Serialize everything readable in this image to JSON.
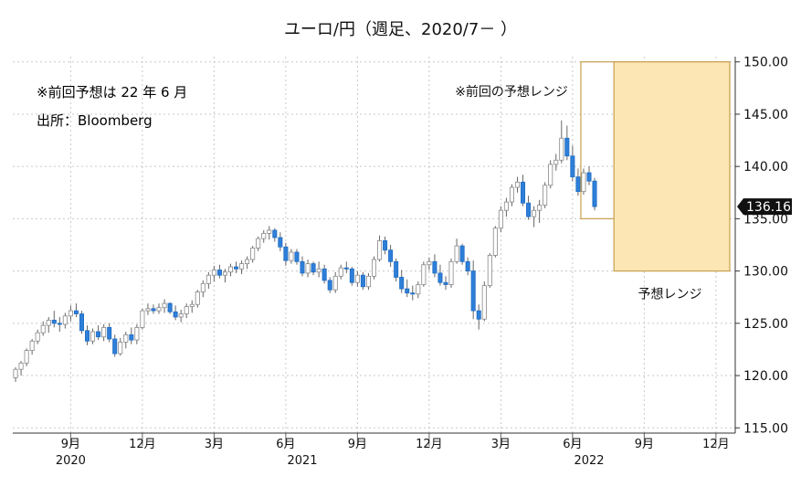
{
  "chart_data": {
    "type": "candlestick",
    "title": "ユーロ/円（週足、2020/7－ ）",
    "annotations": {
      "previous_forecast": "※前回予想は 22 年 6 月",
      "source": "出所：Bloomberg",
      "previous_range_label": "※前回の予想レンジ",
      "forecast_range_label": "予想レンジ"
    },
    "last_price_label": "136.16",
    "y_axis": {
      "ylim": [
        114.5,
        150.5
      ],
      "ticks": [
        115.0,
        120.0,
        125.0,
        130.0,
        135.0,
        140.0,
        145.0,
        150.0
      ],
      "tick_labels": [
        "115.00",
        "120.00",
        "125.00",
        "130.00",
        "135.00",
        "140.00",
        "145.00",
        "150.00"
      ],
      "side": "right"
    },
    "x_axis": {
      "months": [
        {
          "label": "9月",
          "week": 10
        },
        {
          "label": "12月",
          "week": 23
        },
        {
          "label": "3月",
          "week": 36
        },
        {
          "label": "6月",
          "week": 49
        },
        {
          "label": "9月",
          "week": 62
        },
        {
          "label": "12月",
          "week": 75
        },
        {
          "label": "3月",
          "week": 88
        },
        {
          "label": "6月",
          "week": 101
        },
        {
          "label": "9月",
          "week": 114
        },
        {
          "label": "12月",
          "week": 127
        }
      ],
      "years": [
        {
          "label": "2020",
          "week": 10
        },
        {
          "label": "2021",
          "week": 52
        },
        {
          "label": "2022",
          "week": 104
        }
      ]
    },
    "previous_forecast_range": {
      "week_start": 103,
      "week_end": 130,
      "low": 135.0,
      "high": 150.0
    },
    "forecast_range": {
      "week_start": 109,
      "week_end": 130,
      "low": 130.0,
      "high": 150.0
    },
    "colors": {
      "up": "#ffffff",
      "down": "#2e7fd8",
      "range_fill": "#fce6b4",
      "range_border": "#c8a050",
      "grid": "#c8c8c8"
    },
    "ohlc": [
      [
        119.8,
        120.8,
        119.4,
        120.6
      ],
      [
        120.6,
        121.4,
        120.0,
        121.2
      ],
      [
        121.2,
        122.6,
        120.9,
        122.4
      ],
      [
        122.4,
        123.5,
        122.0,
        123.3
      ],
      [
        123.3,
        124.4,
        123.0,
        124.1
      ],
      [
        124.1,
        125.2,
        123.8,
        124.8
      ],
      [
        124.8,
        125.6,
        124.1,
        125.3
      ],
      [
        125.3,
        126.2,
        124.6,
        125.0
      ],
      [
        125.0,
        125.6,
        124.2,
        124.9
      ],
      [
        124.9,
        126.0,
        124.5,
        125.7
      ],
      [
        125.7,
        126.7,
        125.2,
        126.2
      ],
      [
        126.2,
        126.9,
        125.6,
        125.9
      ],
      [
        125.9,
        126.2,
        124.0,
        124.3
      ],
      [
        124.3,
        124.8,
        122.9,
        123.3
      ],
      [
        123.3,
        124.5,
        123.0,
        124.2
      ],
      [
        124.2,
        124.8,
        123.4,
        123.7
      ],
      [
        123.7,
        124.9,
        123.3,
        124.6
      ],
      [
        124.6,
        125.0,
        123.2,
        123.5
      ],
      [
        123.5,
        123.9,
        121.8,
        122.1
      ],
      [
        122.1,
        123.6,
        121.9,
        123.2
      ],
      [
        123.2,
        124.2,
        122.6,
        123.9
      ],
      [
        123.9,
        124.6,
        123.0,
        123.4
      ],
      [
        123.4,
        124.9,
        123.0,
        124.6
      ],
      [
        124.6,
        126.4,
        124.4,
        126.2
      ],
      [
        126.2,
        126.9,
        125.8,
        126.4
      ],
      [
        126.4,
        126.8,
        125.9,
        126.2
      ],
      [
        126.2,
        126.9,
        125.9,
        126.5
      ],
      [
        126.5,
        127.3,
        126.0,
        126.9
      ],
      [
        126.9,
        127.0,
        125.9,
        126.1
      ],
      [
        126.1,
        126.7,
        125.3,
        125.6
      ],
      [
        125.6,
        126.3,
        125.1,
        125.9
      ],
      [
        125.9,
        126.9,
        125.5,
        126.6
      ],
      [
        126.6,
        127.2,
        126.0,
        126.8
      ],
      [
        126.8,
        128.2,
        126.5,
        128.0
      ],
      [
        128.0,
        129.1,
        127.5,
        128.8
      ],
      [
        128.8,
        129.9,
        128.3,
        129.6
      ],
      [
        129.6,
        130.5,
        129.0,
        130.1
      ],
      [
        130.1,
        130.6,
        129.3,
        129.6
      ],
      [
        129.6,
        130.2,
        128.9,
        129.9
      ],
      [
        129.9,
        130.7,
        129.5,
        130.4
      ],
      [
        130.4,
        130.9,
        129.8,
        130.2
      ],
      [
        130.2,
        131.0,
        129.7,
        130.7
      ],
      [
        130.7,
        131.4,
        130.2,
        131.1
      ],
      [
        131.1,
        132.4,
        130.8,
        132.2
      ],
      [
        132.2,
        133.3,
        131.9,
        133.1
      ],
      [
        133.1,
        133.9,
        132.7,
        133.6
      ],
      [
        133.6,
        134.3,
        133.0,
        133.9
      ],
      [
        133.9,
        134.1,
        132.8,
        133.2
      ],
      [
        133.2,
        133.7,
        131.9,
        132.3
      ],
      [
        132.3,
        132.7,
        130.5,
        131.0
      ],
      [
        131.0,
        132.1,
        130.7,
        131.8
      ],
      [
        131.8,
        132.1,
        130.6,
        130.9
      ],
      [
        130.9,
        131.4,
        129.5,
        129.8
      ],
      [
        129.8,
        131.1,
        129.4,
        130.7
      ],
      [
        130.7,
        130.9,
        129.6,
        129.9
      ],
      [
        129.9,
        130.9,
        129.4,
        130.2
      ],
      [
        130.2,
        130.6,
        128.8,
        129.1
      ],
      [
        129.1,
        129.4,
        127.9,
        128.2
      ],
      [
        128.2,
        129.9,
        127.9,
        129.5
      ],
      [
        129.5,
        130.6,
        129.2,
        130.3
      ],
      [
        130.3,
        130.9,
        129.8,
        130.2
      ],
      [
        130.2,
        130.4,
        128.6,
        128.9
      ],
      [
        128.9,
        130.0,
        128.5,
        129.6
      ],
      [
        129.6,
        129.9,
        128.2,
        128.5
      ],
      [
        128.5,
        129.8,
        128.2,
        129.5
      ],
      [
        129.5,
        131.4,
        129.2,
        131.1
      ],
      [
        131.1,
        133.4,
        130.9,
        132.9
      ],
      [
        132.9,
        133.3,
        131.6,
        132.0
      ],
      [
        132.0,
        132.5,
        130.4,
        130.9
      ],
      [
        130.9,
        131.2,
        129.0,
        129.4
      ],
      [
        129.4,
        130.1,
        127.9,
        128.3
      ],
      [
        128.3,
        129.2,
        127.5,
        127.9
      ],
      [
        127.9,
        128.6,
        127.2,
        127.8
      ],
      [
        127.8,
        129.0,
        127.4,
        128.7
      ],
      [
        128.7,
        130.9,
        128.5,
        130.6
      ],
      [
        130.6,
        131.3,
        130.1,
        130.9
      ],
      [
        130.9,
        131.6,
        129.4,
        129.8
      ],
      [
        129.8,
        130.6,
        128.6,
        128.9
      ],
      [
        128.9,
        129.5,
        128.2,
        128.7
      ],
      [
        128.7,
        131.2,
        128.4,
        130.9
      ],
      [
        130.9,
        133.1,
        130.7,
        132.4
      ],
      [
        132.4,
        132.6,
        130.6,
        130.9
      ],
      [
        130.9,
        131.3,
        129.6,
        130.0
      ],
      [
        130.0,
        131.0,
        125.4,
        126.2
      ],
      [
        126.2,
        126.8,
        124.4,
        125.4
      ],
      [
        125.4,
        129.0,
        125.2,
        128.6
      ],
      [
        128.6,
        131.7,
        128.4,
        131.5
      ],
      [
        131.5,
        134.3,
        131.3,
        134.1
      ],
      [
        134.1,
        136.2,
        133.7,
        135.8
      ],
      [
        135.8,
        137.0,
        135.2,
        136.6
      ],
      [
        136.6,
        138.3,
        136.2,
        138.0
      ],
      [
        138.0,
        139.0,
        137.5,
        138.5
      ],
      [
        138.5,
        139.2,
        136.2,
        136.5
      ],
      [
        136.5,
        137.2,
        134.9,
        135.2
      ],
      [
        135.2,
        136.2,
        134.2,
        135.8
      ],
      [
        135.8,
        136.8,
        134.6,
        136.3
      ],
      [
        136.3,
        138.5,
        136.0,
        138.2
      ],
      [
        138.2,
        140.6,
        137.9,
        140.2
      ],
      [
        140.2,
        141.2,
        139.6,
        140.6
      ],
      [
        140.6,
        144.4,
        140.3,
        142.7
      ],
      [
        142.7,
        143.9,
        140.6,
        141.0
      ],
      [
        141.0,
        142.0,
        138.6,
        139.0
      ],
      [
        139.0,
        139.8,
        137.2,
        137.6
      ],
      [
        137.6,
        139.8,
        137.3,
        139.4
      ],
      [
        139.4,
        140.0,
        138.2,
        138.6
      ],
      [
        138.6,
        138.9,
        135.8,
        136.16
      ]
    ]
  }
}
